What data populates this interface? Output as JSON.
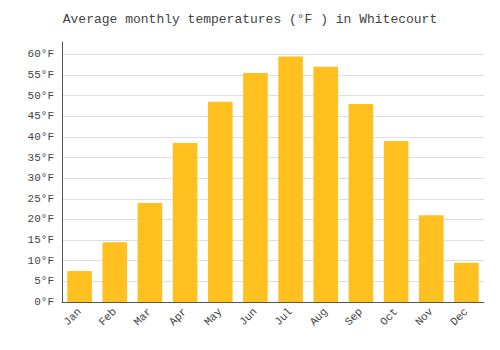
{
  "chart_data": {
    "type": "bar",
    "title": "Average monthly temperatures (°F ) in Whitecourt",
    "categories": [
      "Jan",
      "Feb",
      "Mar",
      "Apr",
      "May",
      "Jun",
      "Jul",
      "Aug",
      "Sep",
      "Oct",
      "Nov",
      "Dec"
    ],
    "values": [
      7.5,
      14.5,
      24.0,
      38.5,
      48.5,
      55.5,
      59.5,
      57.0,
      48.0,
      39.0,
      21.0,
      9.5
    ],
    "color": "#FFC020",
    "ylim": [
      0,
      63
    ],
    "yticks": [
      {
        "value": 0,
        "label": "0°F"
      },
      {
        "value": 5,
        "label": "5°F"
      },
      {
        "value": 10,
        "label": "10°F"
      },
      {
        "value": 15,
        "label": "15°F"
      },
      {
        "value": 20,
        "label": "20°F"
      },
      {
        "value": 25,
        "label": "25°F"
      },
      {
        "value": 30,
        "label": "30°F"
      },
      {
        "value": 35,
        "label": "35°F"
      },
      {
        "value": 40,
        "label": "40°F"
      },
      {
        "value": 45,
        "label": "45°F"
      },
      {
        "value": 50,
        "label": "50°F"
      },
      {
        "value": 55,
        "label": "55°F"
      },
      {
        "value": 60,
        "label": "60°F"
      }
    ],
    "grid": true
  }
}
